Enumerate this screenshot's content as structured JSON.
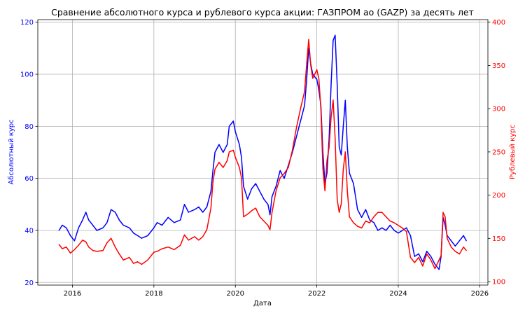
{
  "chart_data": {
    "type": "line",
    "title": "Сравнение абсолютного курса и рублевого курса акции: ГАЗПРОМ ао (GAZP) за десять лет",
    "xlabel": "Дата",
    "ylabel_left": "Абсолютный курс",
    "ylabel_right": "Рублевый курс",
    "x_ticks": [
      "2016",
      "2018",
      "2020",
      "2022",
      "2024",
      "2026"
    ],
    "y_left_ticks": [
      "20",
      "40",
      "60",
      "80",
      "100",
      "120"
    ],
    "y_right_ticks": [
      "100",
      "150",
      "200",
      "250",
      "300",
      "350",
      "400"
    ],
    "xlim": [
      2015.15,
      2026.2
    ],
    "ylim_left": [
      19,
      121
    ],
    "ylim_right": [
      96,
      403
    ],
    "grid": true,
    "colors": {
      "left_axis": "#0000ff",
      "right_axis": "#ff0000",
      "grid": "#b0b0b0"
    },
    "series": [
      {
        "axis": "left",
        "color": "#0000ff",
        "x": [
          2015.67,
          2015.75,
          2015.85,
          2015.95,
          2016.05,
          2016.15,
          2016.25,
          2016.33,
          2016.4,
          2016.5,
          2016.6,
          2016.75,
          2016.85,
          2016.95,
          2017.05,
          2017.15,
          2017.25,
          2017.4,
          2017.5,
          2017.6,
          2017.7,
          2017.85,
          2018.0,
          2018.08,
          2018.2,
          2018.35,
          2018.5,
          2018.65,
          2018.75,
          2018.85,
          2019.0,
          2019.1,
          2019.2,
          2019.3,
          2019.4,
          2019.45,
          2019.5,
          2019.6,
          2019.7,
          2019.8,
          2019.85,
          2019.95,
          2020.0,
          2020.1,
          2020.15,
          2020.2,
          2020.3,
          2020.4,
          2020.5,
          2020.6,
          2020.7,
          2020.8,
          2020.85,
          2020.9,
          2021.0,
          2021.1,
          2021.2,
          2021.3,
          2021.4,
          2021.5,
          2021.6,
          2021.7,
          2021.75,
          2021.8,
          2021.85,
          2021.9,
          2022.0,
          2022.05,
          2022.1,
          2022.15,
          2022.2,
          2022.25,
          2022.3,
          2022.35,
          2022.4,
          2022.45,
          2022.5,
          2022.55,
          2022.6,
          2022.65,
          2022.7,
          2022.75,
          2022.8,
          2022.9,
          2023.0,
          2023.1,
          2023.2,
          2023.3,
          2023.4,
          2023.5,
          2023.6,
          2023.7,
          2023.8,
          2023.9,
          2024.0,
          2024.1,
          2024.2,
          2024.3,
          2024.4,
          2024.5,
          2024.6,
          2024.7,
          2024.8,
          2024.9,
          2025.0,
          2025.05,
          2025.1,
          2025.15,
          2025.2,
          2025.3,
          2025.4,
          2025.5,
          2025.6,
          2025.67
        ],
        "y": [
          40,
          42,
          41,
          38,
          36,
          41,
          44,
          47,
          44,
          42,
          40,
          41,
          43,
          48,
          47,
          44,
          42,
          41,
          39,
          38,
          37,
          38,
          41,
          43,
          42,
          45,
          43,
          44,
          50,
          47,
          48,
          49,
          47,
          49,
          55,
          63,
          70,
          73,
          70,
          73,
          80,
          82,
          78,
          73,
          68,
          57,
          52,
          56,
          58,
          55,
          52,
          50,
          46,
          53,
          57,
          63,
          60,
          65,
          70,
          76,
          82,
          88,
          98,
          110,
          104,
          100,
          98,
          94,
          88,
          70,
          58,
          62,
          75,
          96,
          113,
          115,
          96,
          72,
          69,
          80,
          90,
          72,
          62,
          58,
          48,
          45,
          48,
          44,
          43,
          40,
          41,
          40,
          42,
          40,
          39,
          40,
          41,
          38,
          30,
          31,
          28,
          32,
          30,
          27,
          25,
          30,
          45,
          42,
          38,
          36,
          34,
          36,
          38,
          36
        ]
      },
      {
        "axis": "right",
        "color": "#ff0000",
        "x": [
          2015.67,
          2015.75,
          2015.85,
          2015.95,
          2016.05,
          2016.15,
          2016.25,
          2016.33,
          2016.4,
          2016.5,
          2016.6,
          2016.75,
          2016.85,
          2016.95,
          2017.05,
          2017.15,
          2017.25,
          2017.4,
          2017.5,
          2017.6,
          2017.7,
          2017.85,
          2018.0,
          2018.08,
          2018.2,
          2018.35,
          2018.5,
          2018.65,
          2018.75,
          2018.85,
          2019.0,
          2019.1,
          2019.2,
          2019.3,
          2019.4,
          2019.45,
          2019.5,
          2019.6,
          2019.7,
          2019.8,
          2019.85,
          2019.95,
          2020.0,
          2020.1,
          2020.15,
          2020.2,
          2020.3,
          2020.4,
          2020.5,
          2020.6,
          2020.7,
          2020.8,
          2020.85,
          2020.9,
          2021.0,
          2021.1,
          2021.2,
          2021.3,
          2021.4,
          2021.5,
          2021.6,
          2021.7,
          2021.75,
          2021.8,
          2021.85,
          2021.9,
          2022.0,
          2022.05,
          2022.1,
          2022.15,
          2022.2,
          2022.25,
          2022.3,
          2022.35,
          2022.4,
          2022.45,
          2022.5,
          2022.55,
          2022.6,
          2022.65,
          2022.7,
          2022.75,
          2022.8,
          2022.9,
          2023.0,
          2023.1,
          2023.2,
          2023.3,
          2023.4,
          2023.5,
          2023.6,
          2023.7,
          2023.8,
          2023.9,
          2024.0,
          2024.1,
          2024.2,
          2024.3,
          2024.4,
          2024.5,
          2024.6,
          2024.7,
          2024.8,
          2024.9,
          2025.0,
          2025.05,
          2025.1,
          2025.15,
          2025.2,
          2025.3,
          2025.4,
          2025.5,
          2025.6,
          2025.67
        ],
        "y": [
          143,
          138,
          140,
          133,
          137,
          142,
          148,
          146,
          140,
          136,
          135,
          136,
          145,
          150,
          140,
          132,
          125,
          128,
          121,
          123,
          120,
          125,
          134,
          135,
          138,
          140,
          137,
          142,
          154,
          148,
          152,
          148,
          152,
          160,
          185,
          215,
          230,
          238,
          232,
          240,
          250,
          252,
          244,
          232,
          220,
          175,
          178,
          182,
          185,
          175,
          170,
          165,
          160,
          180,
          205,
          220,
          225,
          232,
          252,
          278,
          300,
          320,
          352,
          380,
          350,
          335,
          345,
          335,
          300,
          230,
          205,
          240,
          255,
          290,
          310,
          265,
          195,
          180,
          190,
          230,
          250,
          205,
          175,
          168,
          164,
          162,
          170,
          168,
          175,
          180,
          180,
          175,
          170,
          168,
          165,
          162,
          158,
          128,
          122,
          128,
          118,
          132,
          125,
          115,
          125,
          130,
          180,
          175,
          150,
          140,
          135,
          132,
          140,
          136
        ]
      }
    ]
  }
}
